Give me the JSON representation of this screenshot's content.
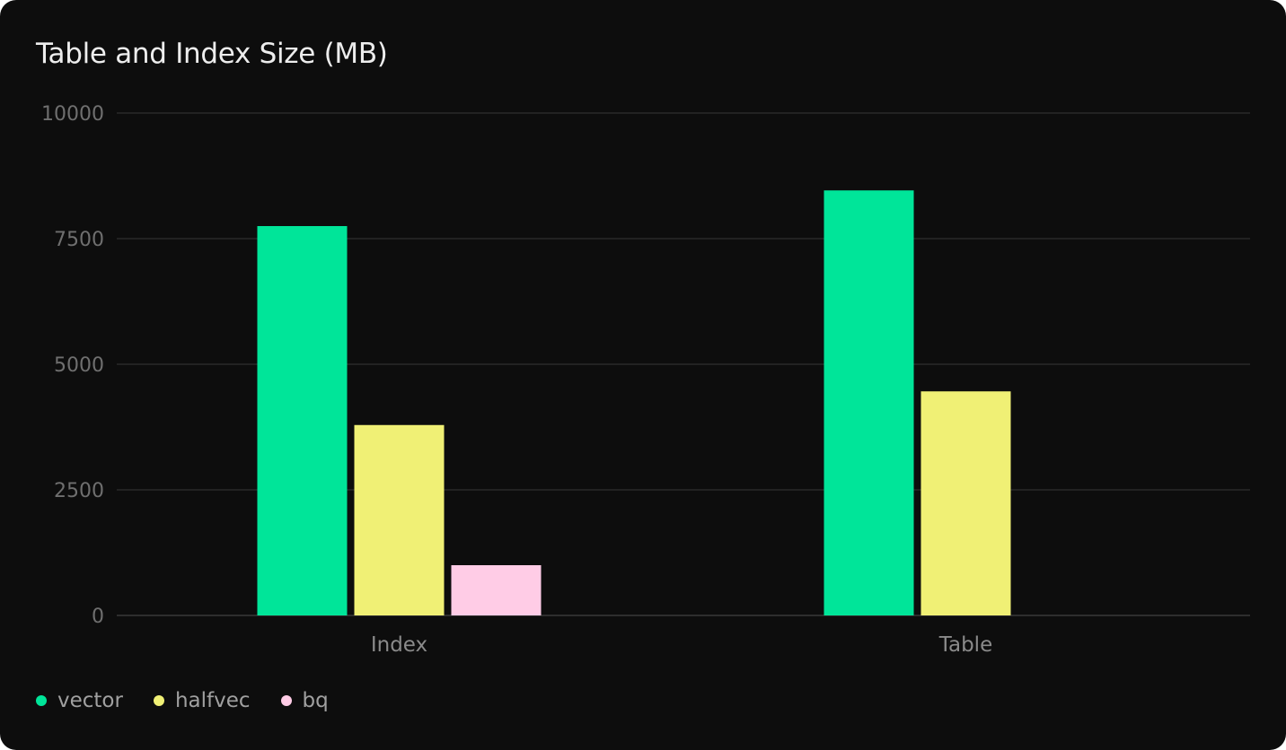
{
  "chart_data": {
    "type": "bar",
    "title": "Table and Index Size (MB)",
    "categories": [
      "Index",
      "Table"
    ],
    "series": [
      {
        "name": "vector",
        "color": "#00e599",
        "values": [
          7750,
          8460
        ]
      },
      {
        "name": "halfvec",
        "color": "#f0f075",
        "values": [
          3790,
          4460
        ]
      },
      {
        "name": "bq",
        "color": "#ffcce6",
        "values": [
          1000,
          null
        ]
      }
    ],
    "ylim": [
      0,
      10000
    ],
    "yticks": [
      0,
      2500,
      5000,
      7500,
      10000
    ],
    "grid": true,
    "legend": "bottom-left",
    "xlabel": "",
    "ylabel": ""
  }
}
